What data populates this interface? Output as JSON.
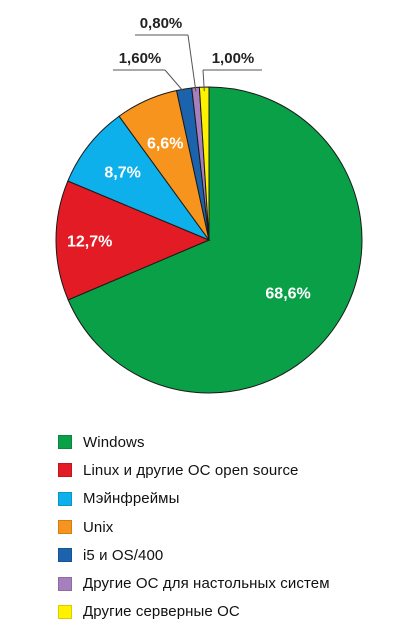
{
  "chart_data": {
    "type": "pie",
    "categories": [
      "Windows",
      "Linux и другие ОС open source",
      "Мэйнфреймы",
      "Unix",
      "i5 и OS/400",
      "Другие ОС для настольных систем",
      "Другие серверные ОС"
    ],
    "values": [
      68.6,
      12.7,
      8.7,
      6.6,
      1.6,
      0.8,
      1.0
    ],
    "value_labels": [
      "68,6%",
      "12,7%",
      "8,7%",
      "6,6%",
      "1,60%",
      "0,80%",
      "1,00%"
    ],
    "colors": [
      "#0aa048",
      "#e21b24",
      "#0db0ea",
      "#f7941d",
      "#1c63ad",
      "#a67fbf",
      "#fff200"
    ],
    "legend_placement": "bottom-left"
  }
}
